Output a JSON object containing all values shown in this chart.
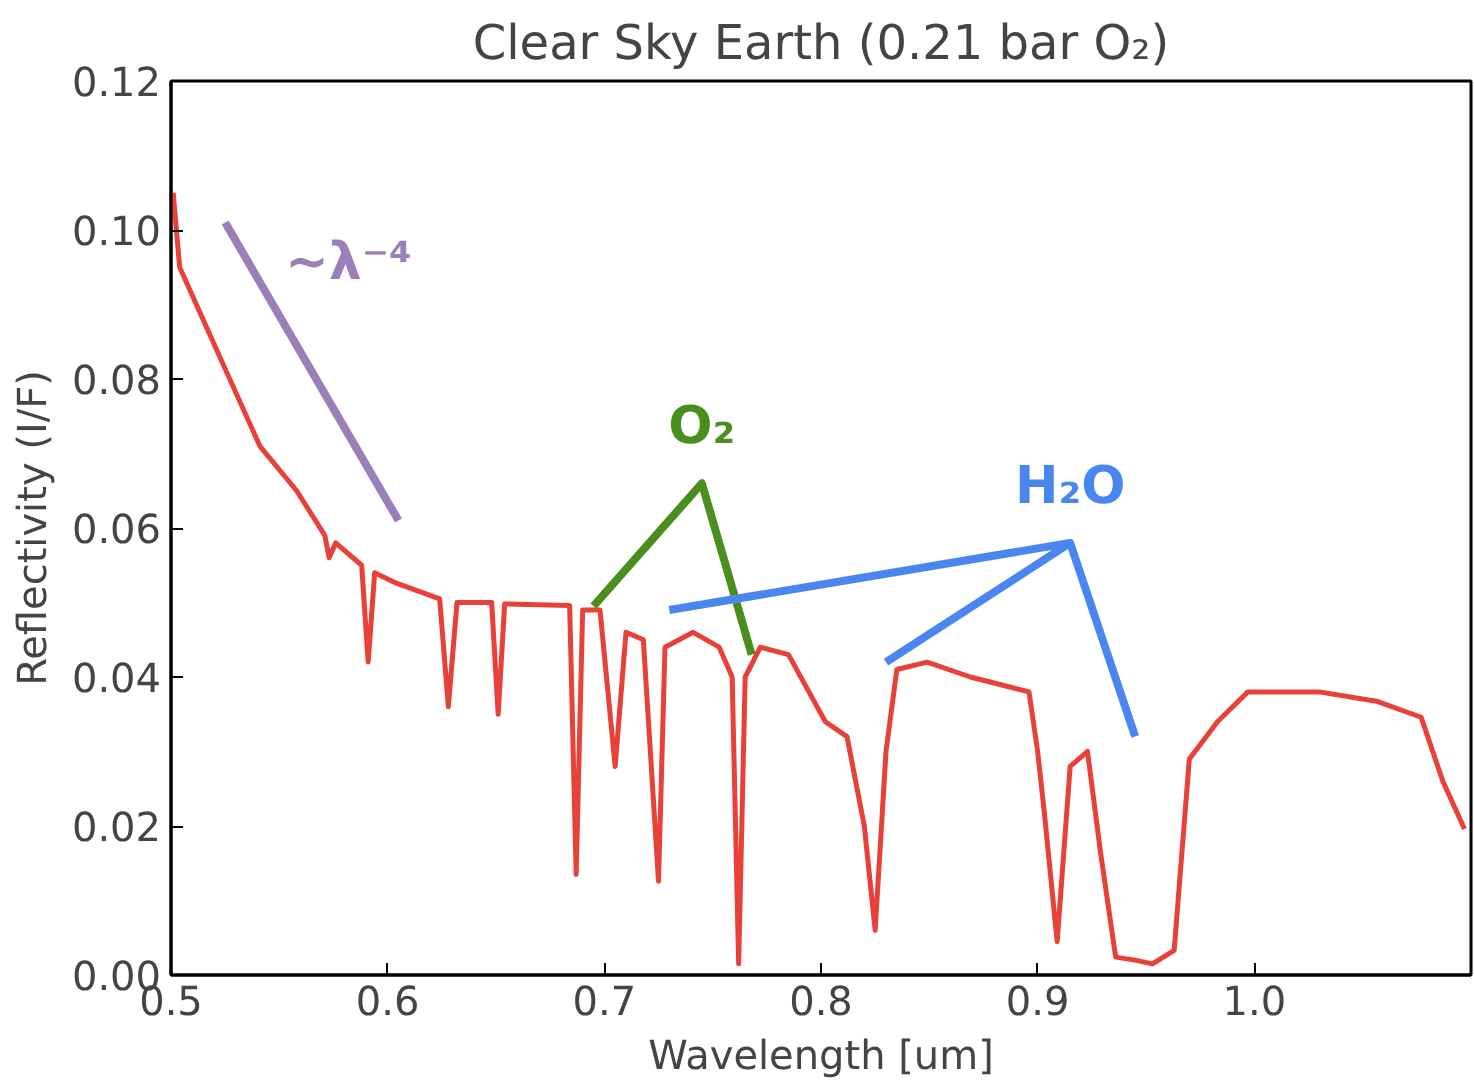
{
  "chart_data": {
    "type": "line",
    "title": "Clear Sky Earth (0.21 bar O₂)",
    "xlabel": "Wavelength [um]",
    "ylabel": "Reflectivity (I/F)",
    "xlim": [
      0.5,
      1.1
    ],
    "ylim": [
      0.0,
      0.12
    ],
    "xticks": [
      0.5,
      0.6,
      0.7,
      0.8,
      0.9,
      {
        "value": 1.0,
        "label": "1.0"
      }
    ],
    "yticks": [
      {
        "value": 0.0,
        "label": "0.00"
      },
      {
        "value": 0.02,
        "label": "0.02"
      },
      {
        "value": 0.04,
        "label": "0.04"
      },
      {
        "value": 0.06,
        "label": "0.06"
      },
      {
        "value": 0.08,
        "label": "0.08"
      },
      {
        "value": 0.1,
        "label": "0.10"
      },
      {
        "value": 0.12,
        "label": "0.12"
      }
    ],
    "grid": false,
    "series": [
      {
        "color": "#e8413a",
        "x": [
          0.501,
          0.504,
          0.524,
          0.541,
          0.558,
          0.571,
          0.573,
          0.576,
          0.588,
          0.591,
          0.594,
          0.604,
          0.624,
          0.628,
          0.632,
          0.648,
          0.651,
          0.654,
          0.684,
          0.687,
          0.69,
          0.698,
          0.705,
          0.71,
          0.718,
          0.725,
          0.728,
          0.741,
          0.753,
          0.759,
          0.762,
          0.765,
          0.772,
          0.785,
          0.802,
          0.812,
          0.82,
          0.825,
          0.83,
          0.835,
          0.849,
          0.869,
          0.896,
          0.9,
          0.903,
          0.909,
          0.915,
          0.923,
          0.929,
          0.936,
          0.945,
          0.953,
          0.963,
          0.97,
          0.983,
          0.997,
          1.03,
          1.057,
          1.077,
          1.087,
          1.097
        ],
        "values": [
          0.105,
          0.095,
          0.082,
          0.071,
          0.065,
          0.059,
          0.056,
          0.058,
          0.055,
          0.042,
          0.054,
          0.0526,
          0.0505,
          0.036,
          0.05,
          0.05,
          0.035,
          0.0498,
          0.0496,
          0.0135,
          0.049,
          0.049,
          0.028,
          0.046,
          0.045,
          0.0126,
          0.044,
          0.046,
          0.044,
          0.04,
          0.0015,
          0.04,
          0.044,
          0.043,
          0.034,
          0.032,
          0.02,
          0.006,
          0.03,
          0.041,
          0.042,
          0.04,
          0.038,
          0.03,
          0.022,
          0.0045,
          0.028,
          0.03,
          0.0165,
          0.0024,
          0.002,
          0.0015,
          0.0033,
          0.029,
          0.034,
          0.038,
          0.038,
          0.0367,
          0.0346,
          0.026,
          0.0196
        ]
      },
      {
        "color": "#9b7fb8",
        "x": [
          0.525,
          0.605
        ],
        "values": [
          0.101,
          0.061
        ]
      },
      {
        "color": "#4a8f1e",
        "x": [
          0.695,
          0.745,
          0.768
        ],
        "values": [
          0.0495,
          0.066,
          0.043
        ]
      },
      {
        "color": "#4a86f0",
        "x": [
          0.73,
          0.915,
          0.945
        ],
        "values": [
          0.049,
          0.058,
          0.032
        ]
      },
      {
        "color": "#4a86f0",
        "x": [
          0.83,
          0.915
        ],
        "values": [
          0.042,
          0.058
        ]
      }
    ],
    "annotations": [
      "~λ⁻⁴",
      "O₂",
      "H₂O"
    ]
  }
}
